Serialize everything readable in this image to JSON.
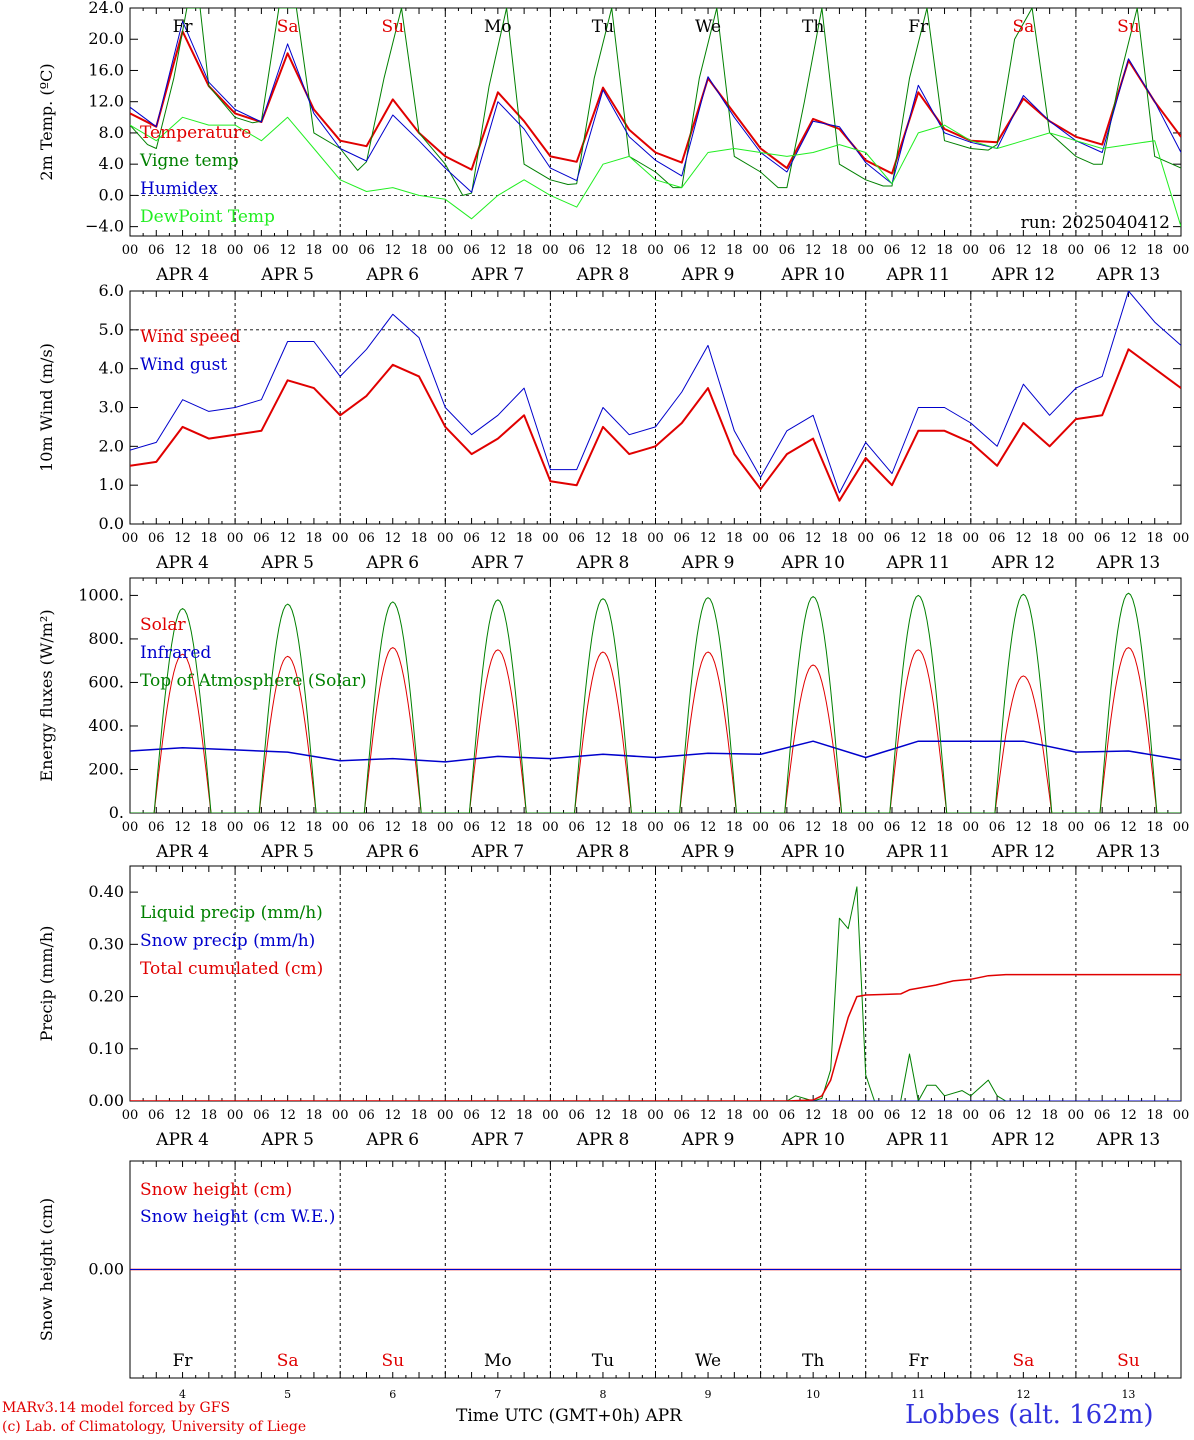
{
  "days": [
    "APR 4",
    "APR 5",
    "APR 6",
    "APR 7",
    "APR 8",
    "APR 9",
    "APR 10",
    "APR 11",
    "APR 12",
    "APR 13"
  ],
  "day_names": [
    "Fr",
    "Sa",
    "Su",
    "Mo",
    "Tu",
    "We",
    "Th",
    "Fr",
    "Sa",
    "Su"
  ],
  "weekend_color": "#e00000",
  "weekday_color": "#000000",
  "hour_ticks": [
    "00",
    "06",
    "12",
    "18"
  ],
  "last_tick": "00",
  "bottom_day_numbers": [
    "4",
    "5",
    "6",
    "7",
    "8",
    "9",
    "10",
    "11",
    "12",
    "13"
  ],
  "run_label": "run: 2025040412",
  "footer": {
    "model": "MARv3.14 model forced by GFS",
    "lab": "(c) Lab. of Climatology, University of Liege",
    "xlabel": "Time UTC (GMT+0h)",
    "xlabel_month": "APR",
    "station": "Lobbes (alt. 162m)"
  },
  "chart_data": [
    {
      "type": "line",
      "ylabel": "2m Temp. (ºC)",
      "ylim": [
        -5.2,
        24
      ],
      "yticks": [
        "24.0",
        "20.0",
        "16.0",
        "12.0",
        "8.0",
        "4.0",
        "0.0",
        "−4.0"
      ],
      "ytick_values": [
        24,
        20,
        16,
        12,
        8,
        4,
        0,
        -4
      ],
      "hlines": [
        0
      ],
      "x_unit": "hours from APR 4 00 UTC",
      "series": [
        {
          "name": "Temperature",
          "color": "#e00000",
          "width": 2,
          "x": [
            0,
            6,
            12,
            18,
            24,
            30,
            36,
            42,
            48,
            54,
            60,
            66,
            72,
            78,
            84,
            90,
            96,
            102,
            108,
            114,
            120,
            126,
            132,
            138,
            144,
            150,
            156,
            162,
            168,
            174,
            180,
            186,
            192,
            198,
            204,
            210,
            216,
            222,
            228,
            234,
            240
          ],
          "y": [
            10.5,
            8.8,
            21.0,
            14.0,
            10.5,
            9.4,
            18.2,
            11.0,
            7.0,
            6.3,
            12.3,
            8.0,
            5.0,
            3.3,
            13.2,
            9.5,
            5.0,
            4.3,
            13.8,
            8.4,
            5.5,
            4.2,
            15.0,
            10.5,
            6.0,
            3.5,
            9.8,
            8.5,
            4.5,
            2.8,
            13.2,
            8.5,
            7.0,
            6.8,
            12.4,
            9.5,
            7.5,
            6.5,
            17.3,
            12.0,
            7.5
          ]
        },
        {
          "name": "Vigne temp",
          "color": "#008000",
          "width": 1,
          "x": [
            0,
            4,
            6,
            10,
            13,
            16,
            18,
            24,
            28,
            30,
            34,
            38,
            42,
            48,
            52,
            54,
            58,
            62,
            66,
            72,
            76,
            78,
            82,
            86,
            90,
            96,
            100,
            102,
            106,
            110,
            114,
            120,
            124,
            126,
            130,
            134,
            138,
            144,
            148,
            150,
            154,
            158,
            162,
            168,
            172,
            174,
            178,
            182,
            186,
            192,
            196,
            198,
            202,
            206,
            210,
            216,
            220,
            222,
            226,
            230,
            234,
            240
          ],
          "y": [
            9.0,
            6.5,
            6.0,
            15.0,
            24.0,
            24.0,
            14.0,
            10.0,
            9.3,
            9.5,
            24.0,
            24.0,
            8.0,
            6.0,
            3.2,
            4.3,
            15.0,
            24.0,
            8.0,
            4.0,
            0.0,
            0.3,
            14.0,
            24.0,
            4.0,
            2.0,
            1.4,
            1.5,
            15.0,
            24.0,
            5.0,
            3.0,
            1.0,
            1.0,
            15.0,
            24.0,
            5.0,
            3.0,
            1.0,
            1.0,
            12.0,
            24.0,
            4.0,
            2.0,
            1.2,
            1.2,
            15.0,
            24.0,
            7.0,
            6.0,
            5.8,
            6.5,
            20.0,
            24.0,
            8.0,
            5.0,
            4.0,
            4.0,
            15.0,
            24.0,
            5.0,
            3.5
          ]
        },
        {
          "name": "Humidex",
          "color": "#0000cc",
          "width": 1,
          "x": [
            0,
            6,
            12,
            18,
            24,
            30,
            36,
            42,
            48,
            54,
            60,
            66,
            72,
            78,
            84,
            90,
            96,
            102,
            108,
            114,
            120,
            126,
            132,
            138,
            144,
            150,
            156,
            162,
            168,
            174,
            180,
            186,
            192,
            198,
            204,
            210,
            216,
            222,
            228,
            234,
            240
          ],
          "y": [
            11.3,
            8.8,
            22.3,
            14.5,
            11.0,
            9.4,
            19.4,
            10.5,
            6.0,
            4.4,
            10.3,
            7.0,
            3.5,
            0.4,
            12.0,
            8.5,
            3.5,
            1.9,
            13.5,
            7.5,
            4.5,
            2.5,
            15.2,
            10.0,
            5.5,
            3.0,
            9.5,
            8.8,
            4.2,
            1.5,
            14.1,
            8.0,
            6.8,
            6.0,
            12.8,
            9.5,
            7.0,
            5.5,
            17.5,
            12.0,
            5.5
          ]
        },
        {
          "name": "DewPoint Temp",
          "color": "#22ee22",
          "width": 1,
          "x": [
            0,
            6,
            12,
            18,
            24,
            30,
            36,
            42,
            48,
            54,
            60,
            66,
            72,
            78,
            84,
            90,
            96,
            102,
            108,
            114,
            120,
            126,
            132,
            138,
            144,
            150,
            156,
            162,
            168,
            174,
            180,
            186,
            192,
            198,
            204,
            210,
            216,
            222,
            228,
            234,
            240
          ],
          "y": [
            9.0,
            7.0,
            10.0,
            9.0,
            9.0,
            7.0,
            10.0,
            6.0,
            2.0,
            0.5,
            1.0,
            0.0,
            -0.5,
            -3.0,
            0.0,
            2.0,
            0.0,
            -1.5,
            4.0,
            5.0,
            2.0,
            1.0,
            5.5,
            6.0,
            5.5,
            5.0,
            5.5,
            6.5,
            5.5,
            1.5,
            8.0,
            9.0,
            7.0,
            6.0,
            7.0,
            8.0,
            7.0,
            6.0,
            6.5,
            7.0,
            -4.0
          ]
        }
      ]
    },
    {
      "type": "line",
      "ylabel": "10m Wind (m/s)",
      "ylim": [
        0,
        6
      ],
      "yticks": [
        "6.0",
        "5.0",
        "4.0",
        "3.0",
        "2.0",
        "1.0",
        "0.0"
      ],
      "ytick_values": [
        6,
        5,
        4,
        3,
        2,
        1,
        0
      ],
      "hlines": [
        5
      ],
      "series": [
        {
          "name": "Wind speed",
          "color": "#e00000",
          "width": 2,
          "x": [
            0,
            6,
            12,
            18,
            24,
            30,
            36,
            42,
            48,
            54,
            60,
            66,
            72,
            78,
            84,
            90,
            96,
            102,
            108,
            114,
            120,
            126,
            132,
            138,
            144,
            150,
            156,
            162,
            168,
            174,
            180,
            186,
            192,
            198,
            204,
            210,
            216,
            222,
            228,
            234,
            240
          ],
          "y": [
            1.5,
            1.6,
            2.5,
            2.2,
            2.3,
            2.4,
            3.7,
            3.5,
            2.8,
            3.3,
            4.1,
            3.8,
            2.5,
            1.8,
            2.2,
            2.8,
            1.1,
            1.0,
            2.5,
            1.8,
            2.0,
            2.6,
            3.5,
            1.8,
            0.9,
            1.8,
            2.2,
            0.6,
            1.7,
            1.0,
            2.4,
            2.4,
            2.1,
            1.5,
            2.6,
            2.0,
            2.7,
            2.8,
            4.5,
            4.0,
            3.5
          ]
        },
        {
          "name": "Wind gust",
          "color": "#0000cc",
          "width": 1,
          "x": [
            0,
            6,
            12,
            18,
            24,
            30,
            36,
            42,
            48,
            54,
            60,
            66,
            72,
            78,
            84,
            90,
            96,
            102,
            108,
            114,
            120,
            126,
            132,
            138,
            144,
            150,
            156,
            162,
            168,
            174,
            180,
            186,
            192,
            198,
            204,
            210,
            216,
            222,
            228,
            234,
            240
          ],
          "y": [
            1.9,
            2.1,
            3.2,
            2.9,
            3.0,
            3.2,
            4.7,
            4.7,
            3.8,
            4.5,
            5.4,
            4.8,
            3.0,
            2.3,
            2.8,
            3.5,
            1.4,
            1.4,
            3.0,
            2.3,
            2.5,
            3.4,
            4.6,
            2.4,
            1.2,
            2.4,
            2.8,
            0.8,
            2.1,
            1.3,
            3.0,
            3.0,
            2.6,
            2.0,
            3.6,
            2.8,
            3.5,
            3.8,
            6.0,
            5.2,
            4.6
          ]
        }
      ]
    },
    {
      "type": "line",
      "ylabel": "Energy fluxes (W/m²)",
      "ylim": [
        0,
        1080
      ],
      "yticks": [
        "1000.",
        "800.",
        "600.",
        "400.",
        "200.",
        "0."
      ],
      "ytick_values": [
        1000,
        800,
        600,
        400,
        200,
        0
      ],
      "hlines": [],
      "diurnal": {
        "sunrise_hour": 5.5,
        "sunset_hour": 18.5,
        "solar_peaks": [
          730,
          720,
          760,
          750,
          740,
          740,
          680,
          750,
          630,
          760
        ],
        "toa_peaks": [
          940,
          960,
          970,
          980,
          985,
          990,
          995,
          1000,
          1005,
          1010
        ]
      },
      "series": [
        {
          "name": "Solar",
          "color": "#e00000",
          "width": 1
        },
        {
          "name": "Infrared",
          "color": "#0000cc",
          "width": 1.5,
          "x": [
            0,
            12,
            24,
            36,
            48,
            60,
            72,
            84,
            96,
            108,
            120,
            132,
            144,
            156,
            168,
            180,
            192,
            204,
            216,
            228,
            240
          ],
          "y": [
            285,
            300,
            290,
            280,
            240,
            250,
            235,
            260,
            250,
            270,
            255,
            275,
            270,
            330,
            255,
            330,
            330,
            330,
            280,
            285,
            245
          ]
        },
        {
          "name": "Top of Atmosphere (Solar)",
          "color": "#008000",
          "width": 1
        }
      ]
    },
    {
      "type": "line",
      "ylabel": "Precip (mm/h)",
      "ylim": [
        0,
        0.45
      ],
      "yticks": [
        "0.40",
        "0.30",
        "0.20",
        "0.10",
        "0.00"
      ],
      "ytick_values": [
        0.4,
        0.3,
        0.2,
        0.1,
        0
      ],
      "hlines": [],
      "series": [
        {
          "name": "Liquid precip (mm/h)",
          "color": "#008000",
          "width": 1,
          "x": [
            0,
            150,
            152,
            154,
            156,
            158,
            160,
            162,
            164,
            166,
            168,
            170,
            176,
            178,
            180,
            182,
            184,
            186,
            190,
            192,
            196,
            198,
            200,
            240
          ],
          "y": [
            0,
            0,
            0.01,
            0.005,
            0.0,
            0.005,
            0.06,
            0.35,
            0.33,
            0.41,
            0.05,
            0.0,
            0.0,
            0.09,
            0.0,
            0.03,
            0.03,
            0.01,
            0.02,
            0.01,
            0.04,
            0.01,
            0.0,
            0.0
          ]
        },
        {
          "name": "Snow precip (mm/h)",
          "color": "#0000cc",
          "width": 1,
          "x": [
            0,
            240
          ],
          "y": [
            0,
            0
          ]
        },
        {
          "name": "Total cumulated (cm)",
          "color": "#e00000",
          "width": 1.5,
          "x": [
            0,
            150,
            156,
            158,
            160,
            162,
            164,
            166,
            168,
            176,
            178,
            184,
            188,
            192,
            196,
            200,
            240
          ],
          "y": [
            0,
            0,
            0.002,
            0.01,
            0.04,
            0.1,
            0.16,
            0.2,
            0.203,
            0.205,
            0.213,
            0.222,
            0.23,
            0.233,
            0.24,
            0.242,
            0.242
          ]
        }
      ]
    },
    {
      "type": "line",
      "ylabel": "Snow height (cm)",
      "ylim": [
        -0.07,
        0.07
      ],
      "yticks": [
        "0.00"
      ],
      "ytick_values": [
        0
      ],
      "hlines": [],
      "series": [
        {
          "name": "Snow height (cm)",
          "color": "#e00000",
          "width": 1.5,
          "x": [
            0,
            240
          ],
          "y": [
            0,
            0
          ]
        },
        {
          "name": "Snow height (cm W.E.)",
          "color": "#0000cc",
          "width": 1,
          "x": [
            0,
            240
          ],
          "y": [
            0,
            0
          ]
        }
      ]
    }
  ]
}
